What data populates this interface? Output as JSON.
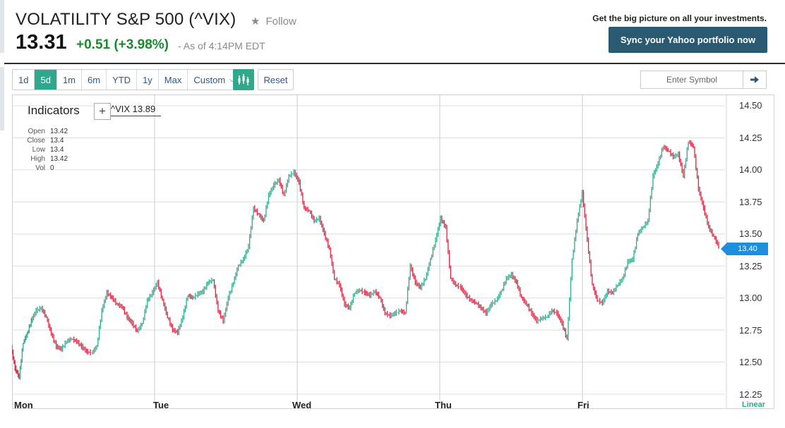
{
  "header": {
    "title": "VOLATILITY S&P 500 (^VIX)",
    "follow_label": "Follow",
    "price": "13.31",
    "change": "+0.51 (+3.98%)",
    "as_of": "- As of 4:14PM EDT",
    "promo_text": "Get the big picture on all your investments.",
    "sync_button": "Sync your Yahoo portfolio now"
  },
  "toolbar": {
    "ranges": [
      "1d",
      "5d",
      "1m",
      "6m",
      "YTD",
      "1y",
      "Max",
      "Custom"
    ],
    "active_range": "5d",
    "reset_label": "Reset",
    "symbol_placeholder": "Enter Symbol"
  },
  "chart_panel": {
    "indicators_label": "Indicators",
    "compare_label": "^VIX 13.89",
    "ohlc": [
      {
        "k": "Open",
        "v": "13.42"
      },
      {
        "k": "Close",
        "v": "13.4"
      },
      {
        "k": "Low",
        "v": "13.4"
      },
      {
        "k": "High",
        "v": "13.42"
      },
      {
        "k": "Vol",
        "v": "0"
      }
    ],
    "last_price_tag": "13.40",
    "scale_label": "Linear"
  },
  "colors": {
    "up": "#2fa88c",
    "down": "#d9233f",
    "accent": "#2fa88c",
    "button_dark": "#2a5a72",
    "tag": "#1e8fe0"
  },
  "chart_data": {
    "type": "line",
    "x_categories": [
      "Mon",
      "Tue",
      "Wed",
      "Thu",
      "Fri"
    ],
    "ylim": [
      12.25,
      14.5
    ],
    "y_ticks": [
      "14.50",
      "14.25",
      "14.00",
      "13.75",
      "13.50",
      "13.25",
      "13.00",
      "12.75",
      "12.50",
      "12.25"
    ],
    "grid": true,
    "series": [
      {
        "points": [
          [
            0.0,
            12.62
          ],
          [
            0.04,
            12.45
          ],
          [
            0.08,
            12.38
          ],
          [
            0.12,
            12.65
          ],
          [
            0.16,
            12.72
          ],
          [
            0.2,
            12.82
          ],
          [
            0.25,
            12.9
          ],
          [
            0.3,
            12.92
          ],
          [
            0.35,
            12.85
          ],
          [
            0.4,
            12.72
          ],
          [
            0.45,
            12.62
          ],
          [
            0.5,
            12.6
          ],
          [
            0.55,
            12.66
          ],
          [
            0.6,
            12.68
          ],
          [
            0.65,
            12.66
          ],
          [
            0.7,
            12.62
          ],
          [
            0.75,
            12.58
          ],
          [
            0.8,
            12.57
          ],
          [
            0.85,
            12.62
          ],
          [
            0.9,
            12.9
          ],
          [
            0.95,
            13.04
          ],
          [
            1.0,
            13.0
          ],
          [
            1.05,
            12.95
          ],
          [
            1.1,
            12.93
          ],
          [
            1.15,
            12.85
          ],
          [
            1.2,
            12.8
          ],
          [
            1.25,
            12.74
          ],
          [
            1.3,
            12.8
          ],
          [
            1.35,
            12.98
          ],
          [
            1.4,
            13.04
          ],
          [
            1.45,
            13.12
          ],
          [
            1.5,
            12.98
          ],
          [
            1.55,
            12.85
          ],
          [
            1.6,
            12.75
          ],
          [
            1.65,
            12.73
          ],
          [
            1.7,
            12.85
          ],
          [
            1.75,
            13.02
          ],
          [
            1.8,
            13.0
          ],
          [
            1.85,
            13.03
          ],
          [
            1.9,
            13.05
          ],
          [
            1.95,
            13.12
          ],
          [
            2.0,
            13.14
          ],
          [
            2.05,
            12.9
          ],
          [
            2.1,
            12.82
          ],
          [
            2.15,
            13.0
          ],
          [
            2.2,
            13.12
          ],
          [
            2.25,
            13.25
          ],
          [
            2.3,
            13.3
          ],
          [
            2.35,
            13.4
          ],
          [
            2.4,
            13.7
          ],
          [
            2.45,
            13.65
          ],
          [
            2.5,
            13.6
          ],
          [
            2.55,
            13.8
          ],
          [
            2.6,
            13.88
          ],
          [
            2.65,
            13.92
          ],
          [
            2.7,
            13.8
          ],
          [
            2.75,
            13.95
          ],
          [
            2.8,
            13.98
          ],
          [
            2.85,
            13.9
          ],
          [
            2.9,
            13.7
          ],
          [
            2.95,
            13.68
          ],
          [
            3.0,
            13.6
          ],
          [
            3.05,
            13.62
          ],
          [
            3.1,
            13.5
          ],
          [
            3.15,
            13.38
          ],
          [
            3.2,
            13.15
          ],
          [
            3.25,
            13.1
          ],
          [
            3.3,
            12.95
          ],
          [
            3.35,
            12.92
          ],
          [
            3.4,
            13.04
          ],
          [
            3.45,
            13.06
          ],
          [
            3.5,
            13.04
          ],
          [
            3.55,
            13.02
          ],
          [
            3.6,
            13.05
          ],
          [
            3.65,
            13.0
          ],
          [
            3.7,
            12.88
          ],
          [
            3.75,
            12.86
          ],
          [
            3.8,
            12.88
          ],
          [
            3.85,
            12.9
          ],
          [
            3.9,
            12.88
          ],
          [
            3.95,
            13.25
          ],
          [
            4.0,
            13.12
          ],
          [
            4.05,
            13.08
          ],
          [
            4.1,
            13.15
          ],
          [
            4.15,
            13.3
          ],
          [
            4.2,
            13.45
          ],
          [
            4.25,
            13.62
          ],
          [
            4.3,
            13.55
          ],
          [
            4.35,
            13.15
          ],
          [
            4.4,
            13.1
          ],
          [
            4.45,
            13.08
          ],
          [
            4.5,
            13.02
          ],
          [
            4.55,
            12.98
          ],
          [
            4.6,
            12.96
          ],
          [
            4.65,
            12.92
          ],
          [
            4.7,
            12.88
          ],
          [
            4.75,
            12.95
          ],
          [
            4.8,
            12.98
          ],
          [
            4.85,
            13.05
          ],
          [
            4.9,
            13.15
          ],
          [
            4.95,
            13.18
          ],
          [
            5.0,
            13.12
          ],
          [
            5.05,
            13.0
          ],
          [
            5.1,
            12.95
          ],
          [
            5.15,
            12.88
          ],
          [
            5.2,
            12.82
          ],
          [
            5.25,
            12.84
          ],
          [
            5.3,
            12.85
          ],
          [
            5.35,
            12.9
          ],
          [
            5.4,
            12.88
          ],
          [
            5.45,
            12.8
          ],
          [
            5.5,
            12.68
          ],
          [
            5.55,
            13.3
          ],
          [
            5.6,
            13.6
          ],
          [
            5.65,
            13.82
          ],
          [
            5.7,
            13.45
          ],
          [
            5.75,
            13.1
          ],
          [
            5.8,
            12.98
          ],
          [
            5.85,
            12.96
          ],
          [
            5.9,
            13.05
          ],
          [
            5.95,
            13.04
          ],
          [
            6.0,
            13.1
          ],
          [
            6.05,
            13.15
          ],
          [
            6.1,
            13.28
          ],
          [
            6.15,
            13.3
          ],
          [
            6.2,
            13.5
          ],
          [
            6.25,
            13.55
          ],
          [
            6.3,
            13.6
          ],
          [
            6.35,
            13.95
          ],
          [
            6.4,
            14.05
          ],
          [
            6.45,
            14.18
          ],
          [
            6.5,
            14.15
          ],
          [
            6.55,
            14.1
          ],
          [
            6.6,
            14.12
          ],
          [
            6.65,
            13.95
          ],
          [
            6.7,
            14.22
          ],
          [
            6.75,
            14.18
          ],
          [
            6.8,
            13.85
          ],
          [
            6.85,
            13.7
          ],
          [
            6.9,
            13.55
          ],
          [
            6.95,
            13.48
          ],
          [
            7.0,
            13.4
          ]
        ]
      }
    ]
  }
}
